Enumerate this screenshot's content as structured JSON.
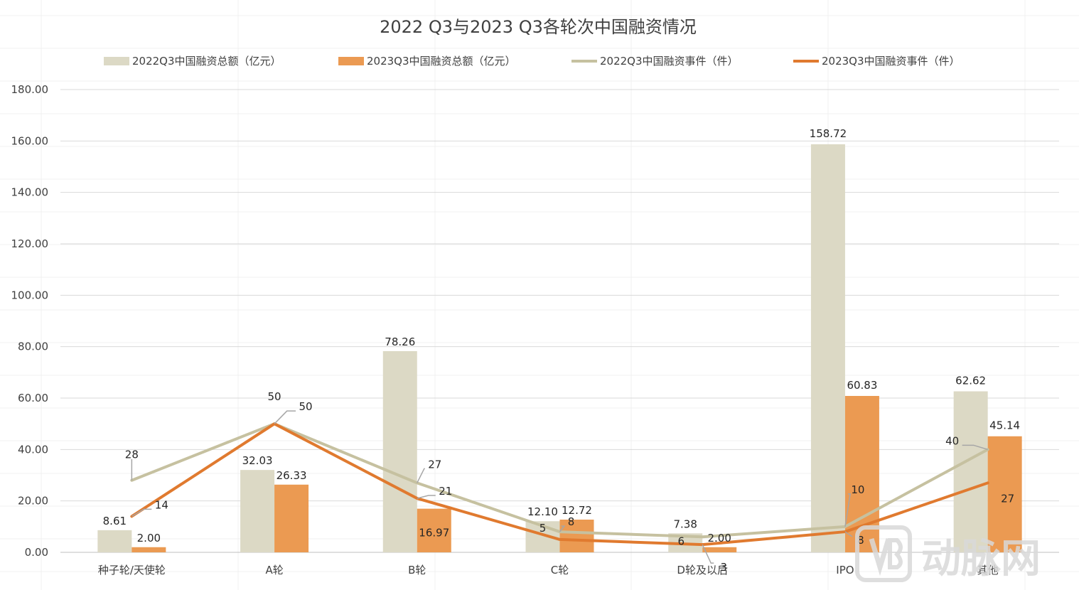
{
  "chart_data": {
    "type": "bar",
    "title": "2022 Q3与2023 Q3各轮次中国融资情况",
    "categories": [
      "种子轮/天使轮",
      "A轮",
      "B轮",
      "C轮",
      "D轮及以后",
      "IPO",
      "其他"
    ],
    "ylim": [
      0,
      180
    ],
    "yticks": [
      "0.00",
      "20.00",
      "40.00",
      "60.00",
      "80.00",
      "100.00",
      "120.00",
      "140.00",
      "160.00",
      "180.00"
    ],
    "grid": true,
    "legend_position": "top",
    "bar_series": [
      {
        "name": "2022Q3中国融资总额（亿元）",
        "color": "#dcd9c5",
        "values": [
          8.61,
          32.03,
          78.26,
          12.1,
          7.38,
          158.72,
          62.62
        ],
        "labels": [
          "8.61",
          "32.03",
          "78.26",
          "12.10",
          "7.38",
          "158.72",
          "62.62"
        ]
      },
      {
        "name": "2023Q3中国融资总额（亿元）",
        "color": "#eb9a52",
        "values": [
          2.0,
          26.33,
          16.97,
          12.72,
          2.0,
          60.83,
          45.14
        ],
        "labels": [
          "2.00",
          "26.33",
          "16.97",
          "12.72",
          "2.00",
          "60.83",
          "45.14"
        ]
      }
    ],
    "line_series": [
      {
        "name": "2022Q3中国融资事件（件）",
        "color": "#c6c1a0",
        "values": [
          28,
          50,
          27,
          8,
          6,
          10,
          40
        ],
        "labels": [
          "28",
          "50",
          "27",
          "8",
          "6",
          "10",
          "40"
        ]
      },
      {
        "name": "2023Q3中国融资事件（件）",
        "color": "#e07a2f",
        "values": [
          14,
          50,
          21,
          5,
          3,
          8,
          27
        ],
        "labels": [
          "14",
          "50",
          "21",
          "5",
          "3",
          "8",
          "27"
        ]
      }
    ]
  },
  "watermark": {
    "text": "动脉网",
    "logo_icon": "vb-logo-icon"
  }
}
